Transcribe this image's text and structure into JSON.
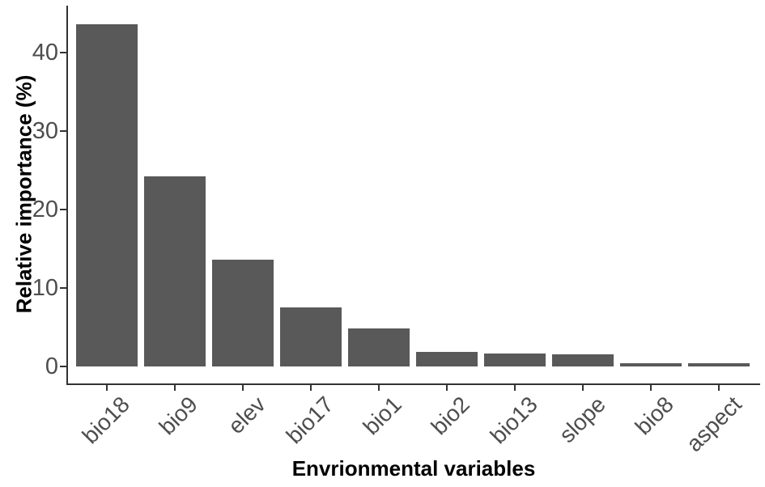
{
  "figure": {
    "background": "#ffffff"
  },
  "chart_data": {
    "type": "bar",
    "title": "",
    "xlabel": "Envrionmental variables",
    "ylabel": "Relative importance (%)",
    "categories": [
      "bio18",
      "bio9",
      "elev",
      "bio17",
      "bio1",
      "bio2",
      "bio13",
      "slope",
      "bio8",
      "aspect"
    ],
    "values": [
      43.6,
      24.2,
      13.6,
      7.5,
      4.8,
      1.9,
      1.7,
      1.5,
      0.4,
      0.4
    ],
    "yticks": [
      0,
      10,
      20,
      30,
      40
    ],
    "ylim": [
      -2.2,
      45.9
    ],
    "grid": "off",
    "legend": "none",
    "x_tick_angle_deg": 45,
    "bar_color": "#595959",
    "axis_line_color": "#333333",
    "tick_label_color": "#4d4d4d",
    "axis_title_color": "#000000"
  }
}
